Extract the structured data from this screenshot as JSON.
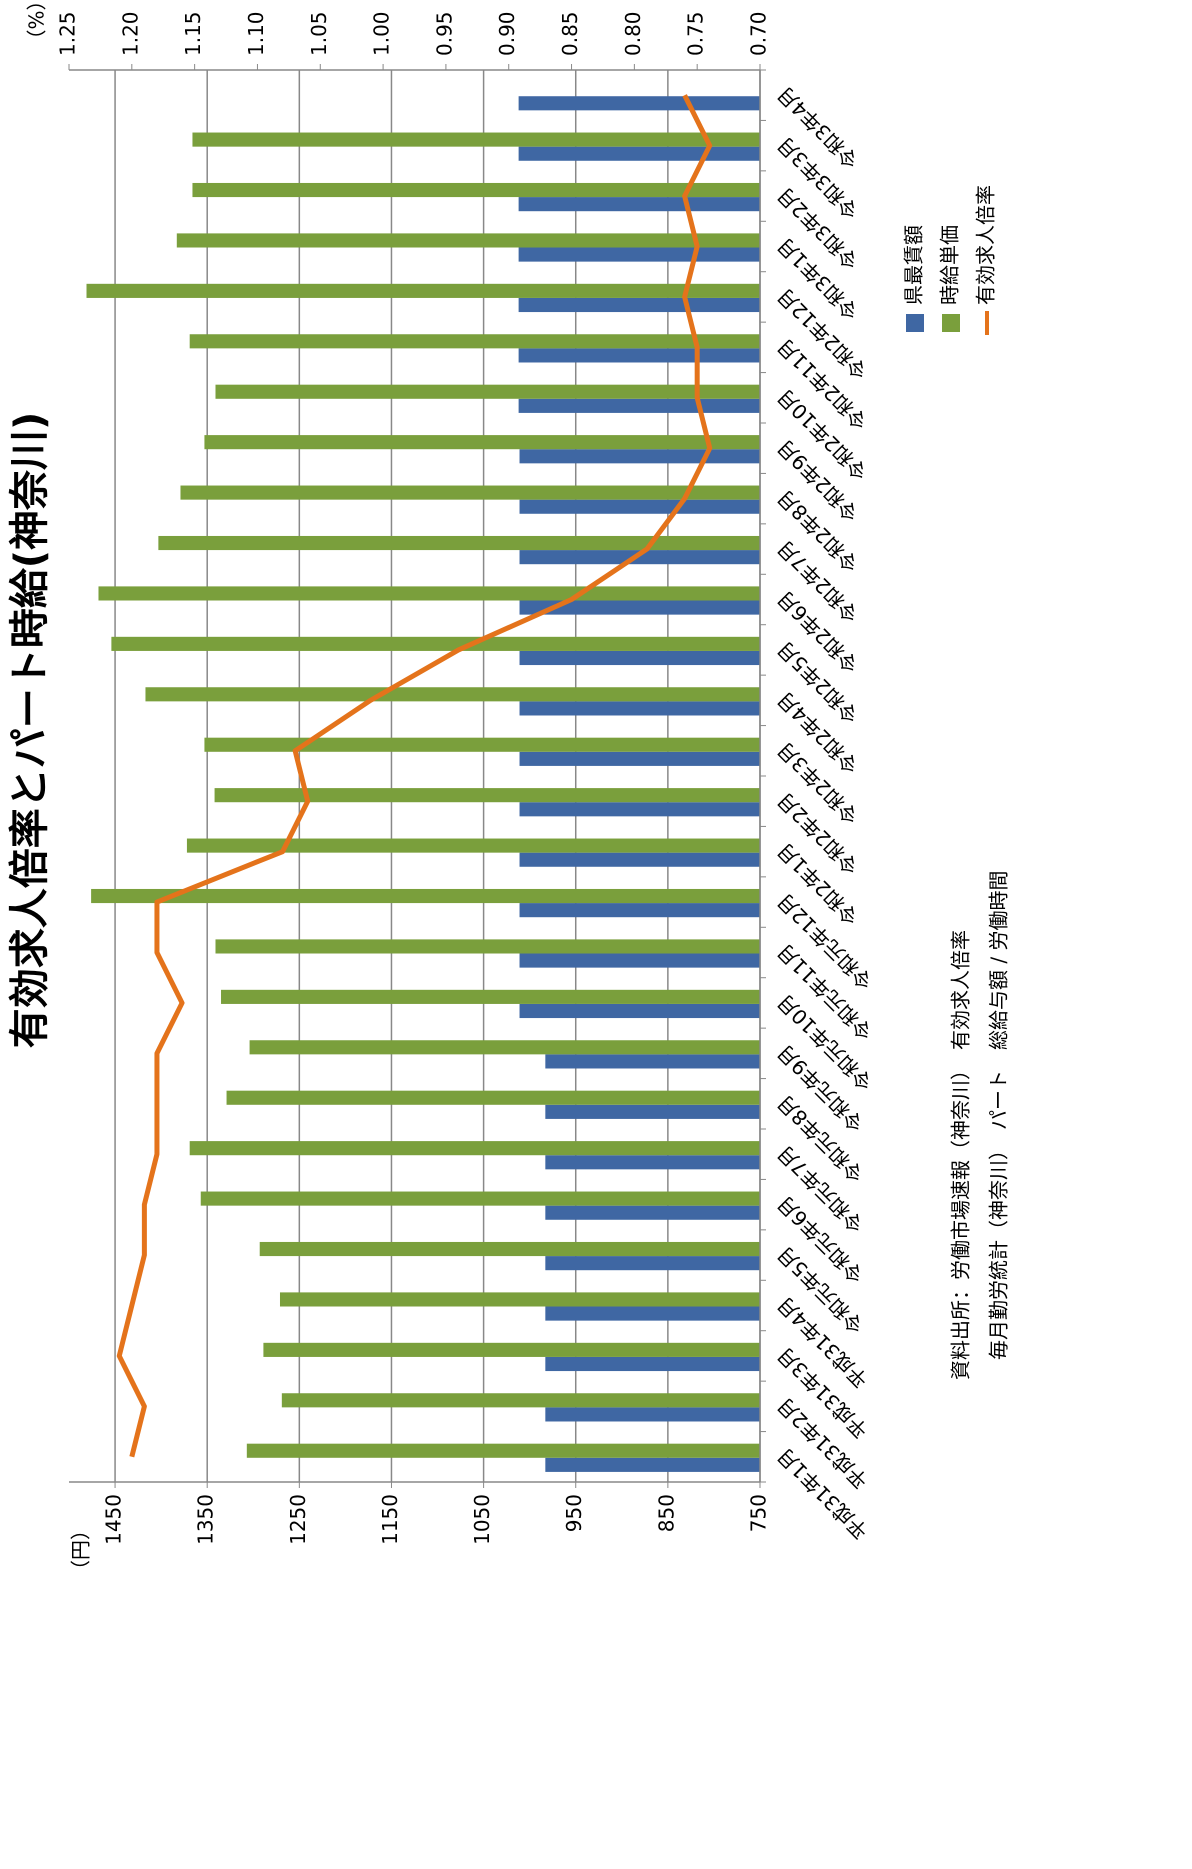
{
  "chart_data": {
    "type": "bar-line",
    "title": "有効求人倍率とパート時給(神奈川)",
    "y_label": "（円）",
    "y2_label": "（%）",
    "categories": [
      "平成31年1月",
      "平成31年2月",
      "平成31年3月",
      "平成31年4月",
      "令和元年5月",
      "令和元年6月",
      "令和元年7月",
      "令和元年8月",
      "令和元年9月",
      "令和元年10月",
      "令和元年11月",
      "令和元年12月",
      "令和2年1月",
      "令和2年2月",
      "令和2年3月",
      "令和2年4月",
      "令和2年5月",
      "令和2年6月",
      "令和2年7月",
      "令和2年8月",
      "令和2年9月",
      "令和2年10月",
      "令和2年11月",
      "令和2年12月",
      "令和3年1月",
      "令和3年2月",
      "令和3年3月",
      "令和3年4月"
    ],
    "series": [
      {
        "name": "県最賃額",
        "color": "#3f67a3",
        "kind": "bar",
        "values": [
          983,
          983,
          983,
          983,
          983,
          983,
          983,
          983,
          983,
          1011,
          1011,
          1011,
          1011,
          1011,
          1011,
          1011,
          1011,
          1011,
          1011,
          1011,
          1011,
          1012,
          1012,
          1012,
          1012,
          1012,
          1012,
          1012
        ]
      },
      {
        "name": "時給単価",
        "color": "#7a9f3c",
        "kind": "bar",
        "values": [
          1307,
          1269,
          1289,
          1271,
          1293,
          1357,
          1369,
          1329,
          1304,
          1335,
          1341,
          1476,
          1372,
          1342,
          1353,
          1417,
          1454,
          1468,
          1403,
          1379,
          1353,
          1341,
          1369,
          1481,
          1383,
          1366,
          1366,
          null
        ]
      },
      {
        "name": "有効求人倍率",
        "color": "#e4731b",
        "kind": "line",
        "axis": "y2",
        "values": [
          1.2,
          1.19,
          1.21,
          1.2,
          1.19,
          1.19,
          1.18,
          1.18,
          1.18,
          1.16,
          1.18,
          1.18,
          1.08,
          1.06,
          1.07,
          1.01,
          0.94,
          0.85,
          0.79,
          0.76,
          0.74,
          0.75,
          0.75,
          0.76,
          0.75,
          0.76,
          0.74,
          0.76
        ]
      }
    ],
    "ylim": [
      750,
      1500
    ],
    "yticks": [
      750,
      850,
      950,
      1050,
      1150,
      1250,
      1350,
      1450
    ],
    "y2lim": [
      0.7,
      1.25
    ],
    "y2ticks": [
      {
        "value": 0.7,
        "label": "0.70"
      },
      0.75,
      {
        "value": 0.8,
        "label": "0.80"
      },
      0.85,
      {
        "value": 0.9,
        "label": "0.90"
      },
      0.95,
      {
        "value": 1.0,
        "label": "1.00"
      },
      1.05,
      {
        "value": 1.1,
        "label": "1.10"
      },
      1.15,
      {
        "value": 1.2,
        "label": "1.20"
      },
      1.25
    ],
    "grid": true,
    "source": [
      "資料出所：労働市場速報（神奈川）　有効求人倍率",
      "毎月勤労統計（神奈川）　パート　総給与額 / 労働時間"
    ]
  }
}
